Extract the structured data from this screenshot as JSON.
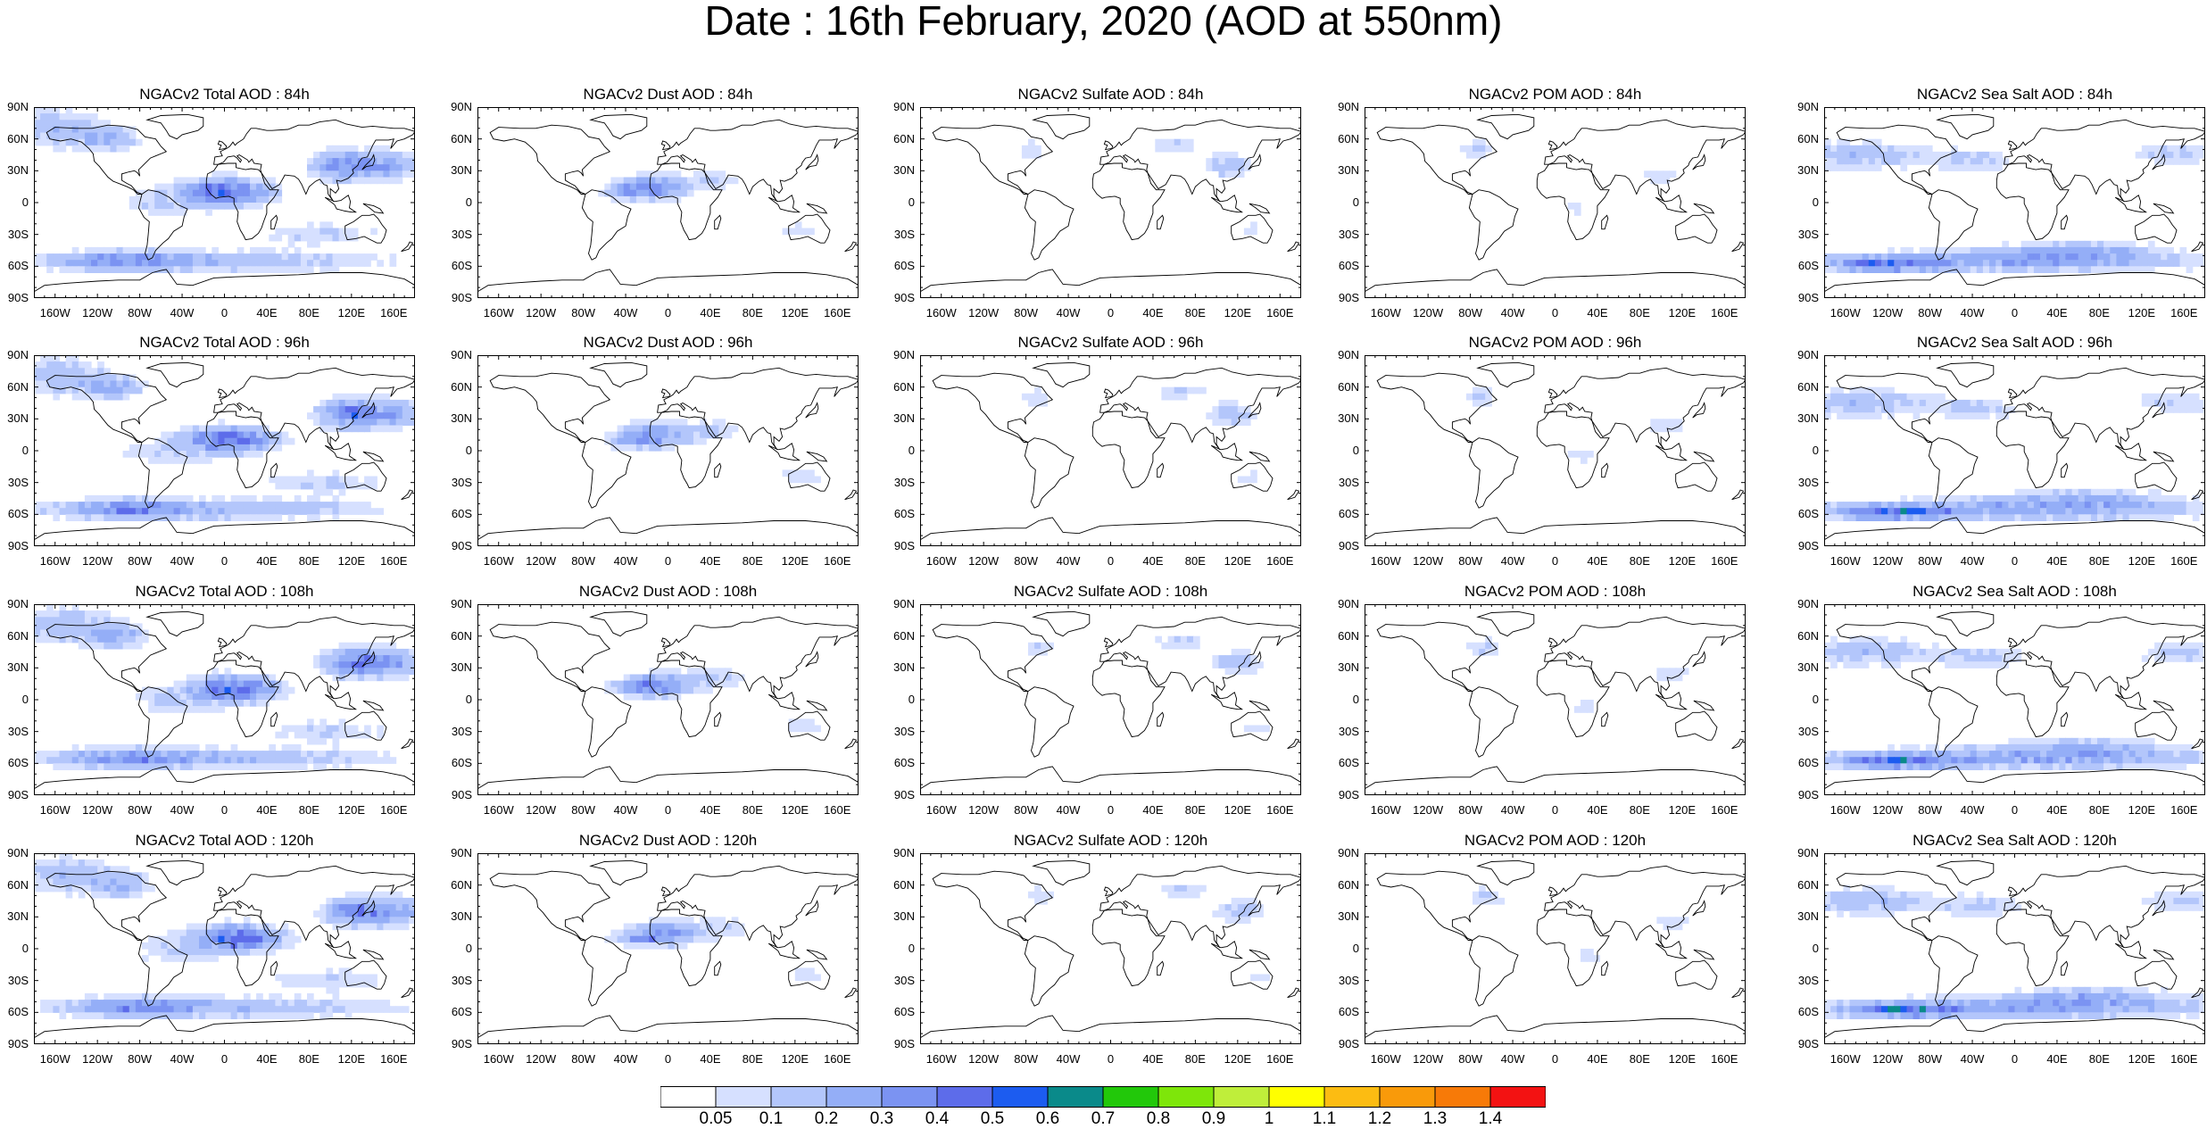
{
  "title": "Date : 16th February, 2020 (AOD at 550nm)",
  "lat_ticks": [
    "90N",
    "60N",
    "30N",
    "0",
    "30S",
    "60S",
    "90S"
  ],
  "lon_ticks": [
    "160W",
    "120W",
    "80W",
    "40W",
    "0",
    "40E",
    "80E",
    "120E",
    "160E"
  ],
  "panels": [
    {
      "title": "NGACv2 Total AOD : 84h",
      "species": "total",
      "lead_hours": 84
    },
    {
      "title": "NGACv2 Dust AOD : 84h",
      "species": "dust",
      "lead_hours": 84
    },
    {
      "title": "NGACv2 Sulfate AOD : 84h",
      "species": "sulfate",
      "lead_hours": 84
    },
    {
      "title": "NGACv2 POM AOD : 84h",
      "species": "pom",
      "lead_hours": 84
    },
    {
      "title": "NGACv2 Sea Salt AOD : 84h",
      "species": "seasalt",
      "lead_hours": 84
    },
    {
      "title": "NGACv2 Total AOD : 96h",
      "species": "total",
      "lead_hours": 96
    },
    {
      "title": "NGACv2 Dust AOD : 96h",
      "species": "dust",
      "lead_hours": 96
    },
    {
      "title": "NGACv2 Sulfate AOD : 96h",
      "species": "sulfate",
      "lead_hours": 96
    },
    {
      "title": "NGACv2 POM AOD : 96h",
      "species": "pom",
      "lead_hours": 96
    },
    {
      "title": "NGACv2 Sea Salt AOD : 96h",
      "species": "seasalt",
      "lead_hours": 96
    },
    {
      "title": "NGACv2 Total AOD : 108h",
      "species": "total",
      "lead_hours": 108
    },
    {
      "title": "NGACv2 Dust AOD : 108h",
      "species": "dust",
      "lead_hours": 108
    },
    {
      "title": "NGACv2 Sulfate AOD : 108h",
      "species": "sulfate",
      "lead_hours": 108
    },
    {
      "title": "NGACv2 POM AOD : 108h",
      "species": "pom",
      "lead_hours": 108
    },
    {
      "title": "NGACv2 Sea Salt AOD : 108h",
      "species": "seasalt",
      "lead_hours": 108
    },
    {
      "title": "NGACv2 Total AOD : 120h",
      "species": "total",
      "lead_hours": 120
    },
    {
      "title": "NGACv2 Dust AOD : 120h",
      "species": "dust",
      "lead_hours": 120
    },
    {
      "title": "NGACv2 Sulfate AOD : 120h",
      "species": "sulfate",
      "lead_hours": 120
    },
    {
      "title": "NGACv2 POM AOD : 120h",
      "species": "pom",
      "lead_hours": 120
    },
    {
      "title": "NGACv2 Sea Salt  AOD : 120h",
      "species": "seasalt",
      "lead_hours": 120
    }
  ],
  "colorbar": {
    "labels": [
      "0.05",
      "0.1",
      "0.2",
      "0.3",
      "0.4",
      "0.5",
      "0.6",
      "0.7",
      "0.8",
      "0.9",
      "1",
      "1.1",
      "1.2",
      "1.3",
      "1.4"
    ],
    "colors": [
      "#ffffff",
      "#d6e0ff",
      "#b3c6fb",
      "#94aef7",
      "#7b93f2",
      "#5d6cea",
      "#1c5cf0",
      "#0a8a8a",
      "#22c80a",
      "#7ee60a",
      "#bfee3a",
      "#ffff00",
      "#fcbc12",
      "#f99a0a",
      "#f77a08",
      "#f31212"
    ]
  }
}
